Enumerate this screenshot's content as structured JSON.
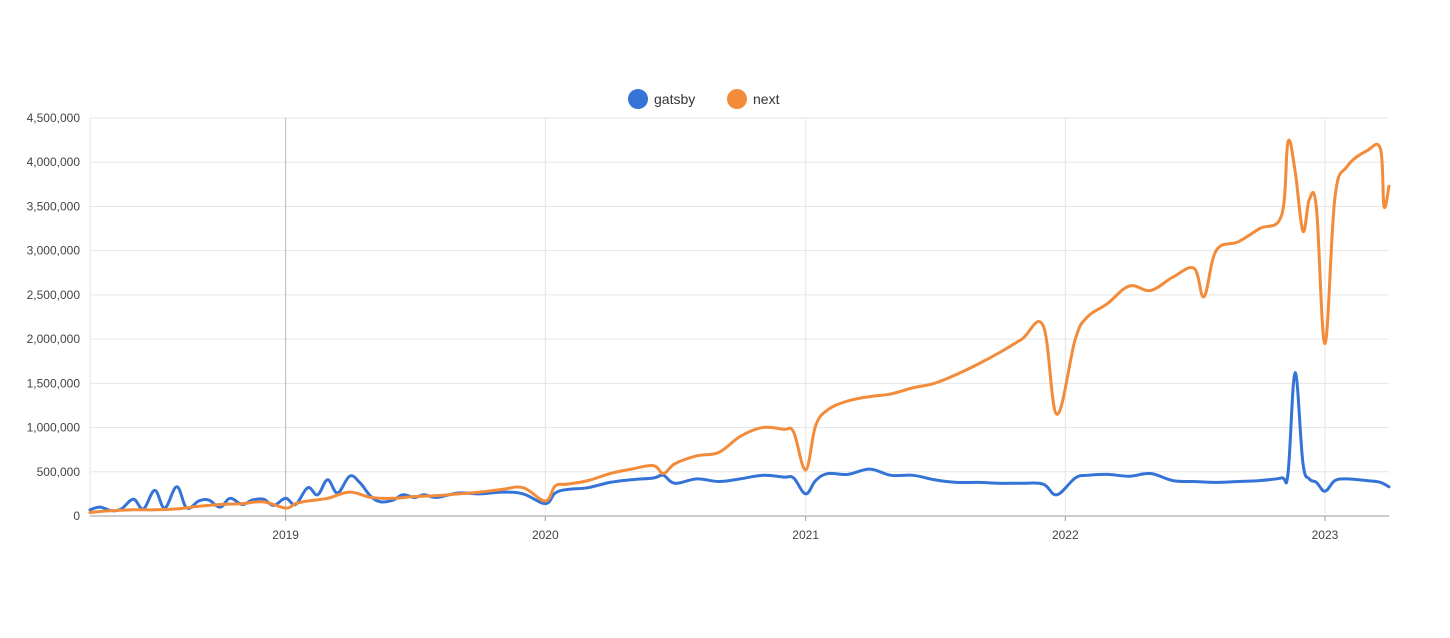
{
  "chart_data": {
    "type": "line",
    "title": "",
    "xlabel": "",
    "ylabel": "",
    "ylim": [
      0,
      4500000
    ],
    "xlim": [
      "2018-04-01",
      "2023-04-01"
    ],
    "yticks": [
      0,
      500000,
      1000000,
      1500000,
      2000000,
      2500000,
      3000000,
      3500000,
      4000000,
      4500000
    ],
    "ytick_labels": [
      "0",
      "500,000",
      "1,000,000",
      "1,500,000",
      "2,000,000",
      "2,500,000",
      "3,000,000",
      "3,500,000",
      "4,000,000",
      "4,500,000"
    ],
    "xticks": [
      "2019-01-01",
      "2020-01-01",
      "2021-01-01",
      "2022-01-01",
      "2023-01-01"
    ],
    "xtick_labels": [
      "2019",
      "2020",
      "2021",
      "2022",
      "2023"
    ],
    "grid": true,
    "legend_position": "top-center",
    "series": [
      {
        "name": "gatsby",
        "color": "#3573d6",
        "points": [
          [
            "2018-04-01",
            70000
          ],
          [
            "2018-04-15",
            100000
          ],
          [
            "2018-05-01",
            60000
          ],
          [
            "2018-05-15",
            80000
          ],
          [
            "2018-06-01",
            190000
          ],
          [
            "2018-06-15",
            80000
          ],
          [
            "2018-07-01",
            290000
          ],
          [
            "2018-07-15",
            90000
          ],
          [
            "2018-08-01",
            330000
          ],
          [
            "2018-08-15",
            90000
          ],
          [
            "2018-09-01",
            170000
          ],
          [
            "2018-09-15",
            180000
          ],
          [
            "2018-10-01",
            100000
          ],
          [
            "2018-10-15",
            200000
          ],
          [
            "2018-11-01",
            130000
          ],
          [
            "2018-11-15",
            180000
          ],
          [
            "2018-12-01",
            190000
          ],
          [
            "2018-12-15",
            120000
          ],
          [
            "2019-01-01",
            200000
          ],
          [
            "2019-01-15",
            130000
          ],
          [
            "2019-02-01",
            320000
          ],
          [
            "2019-02-15",
            240000
          ],
          [
            "2019-03-01",
            410000
          ],
          [
            "2019-03-15",
            260000
          ],
          [
            "2019-04-01",
            450000
          ],
          [
            "2019-04-15",
            380000
          ],
          [
            "2019-05-01",
            220000
          ],
          [
            "2019-05-15",
            160000
          ],
          [
            "2019-06-01",
            180000
          ],
          [
            "2019-06-15",
            240000
          ],
          [
            "2019-07-01",
            210000
          ],
          [
            "2019-07-15",
            240000
          ],
          [
            "2019-08-01",
            210000
          ],
          [
            "2019-09-01",
            260000
          ],
          [
            "2019-10-01",
            250000
          ],
          [
            "2019-11-01",
            270000
          ],
          [
            "2019-12-01",
            250000
          ],
          [
            "2020-01-01",
            140000
          ],
          [
            "2020-01-15",
            260000
          ],
          [
            "2020-02-01",
            300000
          ],
          [
            "2020-03-01",
            320000
          ],
          [
            "2020-04-01",
            380000
          ],
          [
            "2020-05-01",
            410000
          ],
          [
            "2020-06-01",
            430000
          ],
          [
            "2020-06-15",
            460000
          ],
          [
            "2020-07-01",
            370000
          ],
          [
            "2020-08-01",
            420000
          ],
          [
            "2020-09-01",
            390000
          ],
          [
            "2020-10-01",
            420000
          ],
          [
            "2020-11-01",
            460000
          ],
          [
            "2020-12-01",
            440000
          ],
          [
            "2020-12-15",
            430000
          ],
          [
            "2021-01-01",
            250000
          ],
          [
            "2021-01-15",
            400000
          ],
          [
            "2021-02-01",
            480000
          ],
          [
            "2021-03-01",
            470000
          ],
          [
            "2021-04-01",
            530000
          ],
          [
            "2021-05-01",
            460000
          ],
          [
            "2021-06-01",
            460000
          ],
          [
            "2021-07-01",
            410000
          ],
          [
            "2021-08-01",
            380000
          ],
          [
            "2021-09-01",
            380000
          ],
          [
            "2021-10-01",
            370000
          ],
          [
            "2021-11-01",
            370000
          ],
          [
            "2021-12-01",
            360000
          ],
          [
            "2021-12-20",
            240000
          ],
          [
            "2022-01-15",
            430000
          ],
          [
            "2022-02-01",
            460000
          ],
          [
            "2022-03-01",
            470000
          ],
          [
            "2022-04-01",
            450000
          ],
          [
            "2022-05-01",
            480000
          ],
          [
            "2022-06-01",
            400000
          ],
          [
            "2022-07-01",
            390000
          ],
          [
            "2022-08-01",
            380000
          ],
          [
            "2022-09-01",
            390000
          ],
          [
            "2022-10-01",
            400000
          ],
          [
            "2022-11-01",
            430000
          ],
          [
            "2022-11-10",
            480000
          ],
          [
            "2022-11-20",
            1620000
          ],
          [
            "2022-12-01",
            600000
          ],
          [
            "2022-12-10",
            420000
          ],
          [
            "2022-12-20",
            380000
          ],
          [
            "2023-01-01",
            280000
          ],
          [
            "2023-01-15",
            400000
          ],
          [
            "2023-02-01",
            420000
          ],
          [
            "2023-03-01",
            400000
          ],
          [
            "2023-03-20",
            380000
          ],
          [
            "2023-04-01",
            330000
          ]
        ]
      },
      {
        "name": "next",
        "color": "#f28b3a",
        "points": [
          [
            "2018-04-01",
            40000
          ],
          [
            "2018-05-01",
            60000
          ],
          [
            "2018-06-01",
            70000
          ],
          [
            "2018-07-01",
            70000
          ],
          [
            "2018-08-01",
            80000
          ],
          [
            "2018-09-01",
            110000
          ],
          [
            "2018-10-01",
            130000
          ],
          [
            "2018-11-01",
            140000
          ],
          [
            "2018-12-01",
            160000
          ],
          [
            "2019-01-01",
            90000
          ],
          [
            "2019-01-15",
            140000
          ],
          [
            "2019-02-01",
            170000
          ],
          [
            "2019-03-01",
            200000
          ],
          [
            "2019-04-01",
            270000
          ],
          [
            "2019-05-01",
            210000
          ],
          [
            "2019-06-01",
            200000
          ],
          [
            "2019-07-01",
            220000
          ],
          [
            "2019-08-01",
            230000
          ],
          [
            "2019-09-01",
            250000
          ],
          [
            "2019-10-01",
            270000
          ],
          [
            "2019-11-01",
            300000
          ],
          [
            "2019-12-01",
            320000
          ],
          [
            "2020-01-01",
            170000
          ],
          [
            "2020-01-15",
            340000
          ],
          [
            "2020-02-01",
            360000
          ],
          [
            "2020-03-01",
            400000
          ],
          [
            "2020-04-01",
            480000
          ],
          [
            "2020-05-01",
            530000
          ],
          [
            "2020-06-01",
            570000
          ],
          [
            "2020-06-15",
            480000
          ],
          [
            "2020-07-01",
            590000
          ],
          [
            "2020-08-01",
            680000
          ],
          [
            "2020-09-01",
            720000
          ],
          [
            "2020-10-01",
            900000
          ],
          [
            "2020-11-01",
            1000000
          ],
          [
            "2020-12-01",
            980000
          ],
          [
            "2020-12-15",
            950000
          ],
          [
            "2021-01-01",
            520000
          ],
          [
            "2021-01-15",
            1020000
          ],
          [
            "2021-02-01",
            1200000
          ],
          [
            "2021-03-01",
            1300000
          ],
          [
            "2021-04-01",
            1350000
          ],
          [
            "2021-05-01",
            1380000
          ],
          [
            "2021-06-01",
            1450000
          ],
          [
            "2021-07-01",
            1500000
          ],
          [
            "2021-08-01",
            1600000
          ],
          [
            "2021-09-01",
            1720000
          ],
          [
            "2021-10-01",
            1850000
          ],
          [
            "2021-11-01",
            2000000
          ],
          [
            "2021-12-01",
            2150000
          ],
          [
            "2021-12-20",
            1150000
          ],
          [
            "2022-01-15",
            2000000
          ],
          [
            "2022-02-01",
            2250000
          ],
          [
            "2022-03-01",
            2400000
          ],
          [
            "2022-04-01",
            2600000
          ],
          [
            "2022-05-01",
            2550000
          ],
          [
            "2022-06-01",
            2700000
          ],
          [
            "2022-07-01",
            2800000
          ],
          [
            "2022-07-15",
            2480000
          ],
          [
            "2022-08-01",
            3000000
          ],
          [
            "2022-09-01",
            3100000
          ],
          [
            "2022-10-01",
            3250000
          ],
          [
            "2022-11-01",
            3400000
          ],
          [
            "2022-11-10",
            4230000
          ],
          [
            "2022-11-20",
            3900000
          ],
          [
            "2022-12-01",
            3220000
          ],
          [
            "2022-12-10",
            3580000
          ],
          [
            "2022-12-20",
            3480000
          ],
          [
            "2023-01-01",
            1950000
          ],
          [
            "2023-01-15",
            3600000
          ],
          [
            "2023-02-01",
            3950000
          ],
          [
            "2023-03-01",
            4130000
          ],
          [
            "2023-03-20",
            4150000
          ],
          [
            "2023-03-25",
            3500000
          ],
          [
            "2023-04-01",
            3730000
          ]
        ]
      }
    ]
  }
}
